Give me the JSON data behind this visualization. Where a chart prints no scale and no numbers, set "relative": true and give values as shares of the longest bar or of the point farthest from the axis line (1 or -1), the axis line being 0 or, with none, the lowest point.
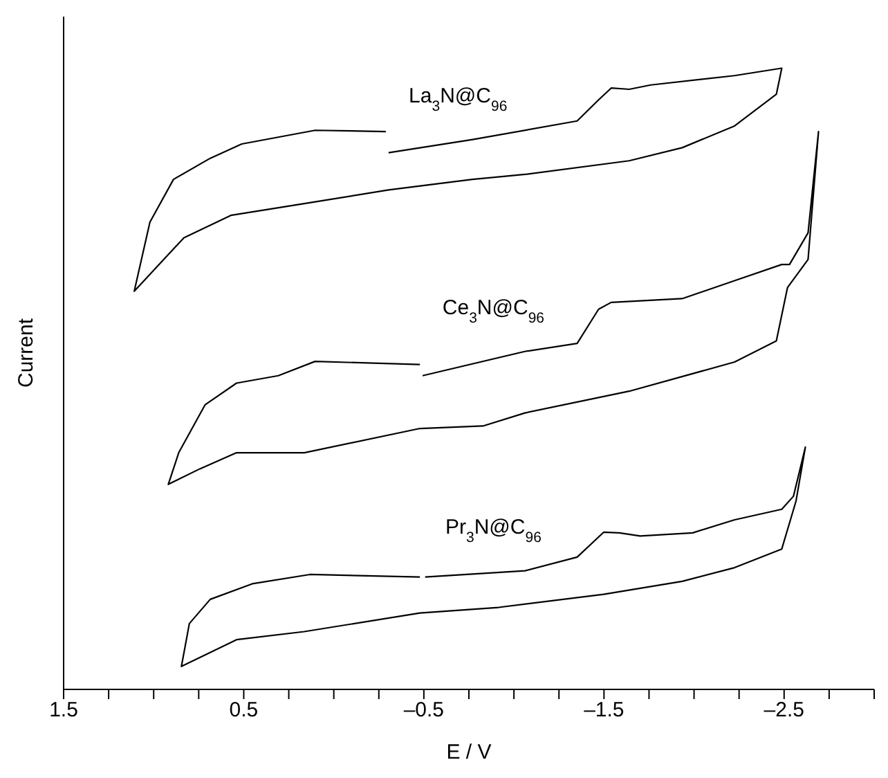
{
  "chart_data": {
    "type": "line",
    "relative": true,
    "xlabel": "E / V",
    "ylabel": "Current",
    "xlim": [
      1.5,
      -3.0
    ],
    "xticks": [
      1.5,
      {
        "value": 1.25,
        "label": null
      },
      {
        "value": 1.0,
        "label": null
      },
      {
        "value": 0.75,
        "label": null
      },
      0.5,
      {
        "value": 0.25,
        "label": null
      },
      {
        "value": 0.0,
        "label": null
      },
      {
        "value": -0.25,
        "label": null
      },
      {
        "value": -0.5,
        "label": "–0.5"
      },
      {
        "value": -0.75,
        "label": null
      },
      {
        "value": -1.0,
        "label": null
      },
      {
        "value": -1.25,
        "label": null
      },
      {
        "value": -1.5,
        "label": "–1.5"
      },
      {
        "value": -1.75,
        "label": null
      },
      {
        "value": -2.0,
        "label": null
      },
      {
        "value": -2.25,
        "label": null
      },
      {
        "value": -2.5,
        "label": "–2.5"
      },
      {
        "value": -2.75,
        "label": null
      },
      {
        "value": -3.0,
        "label": null
      }
    ],
    "grid": false,
    "legend": false,
    "marker": "none",
    "line_style": "solid",
    "series": [
      {
        "name": "La$_{3}$N@C$_{96}$",
        "color": "#000000",
        "x": [
          -0.304,
          -0.77,
          -1.351,
          -1.47,
          -1.54,
          -1.64,
          -1.76,
          -2.225,
          -2.487,
          -2.457,
          -2.225,
          -1.934,
          -1.64,
          -1.061,
          -0.77,
          -0.304,
          0.164,
          0.572,
          0.832,
          1.108,
          1.021,
          0.89,
          0.686,
          0.511,
          0.104,
          -0.289
        ],
        "values": [
          0.864,
          0.885,
          0.915,
          0.949,
          0.968,
          0.966,
          0.973,
          0.988,
          1.0,
          0.958,
          0.907,
          0.872,
          0.851,
          0.829,
          0.821,
          0.804,
          0.782,
          0.763,
          0.727,
          0.641,
          0.752,
          0.821,
          0.855,
          0.878,
          0.9,
          0.898
        ]
      },
      {
        "name": "Ce$_{3}$N@C$_{96}$",
        "color": "#000000",
        "x": [
          -0.493,
          -1.061,
          -1.351,
          -1.47,
          -1.54,
          -1.934,
          -2.225,
          -2.487,
          -2.53,
          -2.633,
          -2.691,
          -2.633,
          -2.519,
          -2.457,
          -2.225,
          -1.64,
          -1.061,
          -0.828,
          -0.478,
          0.164,
          0.54,
          0.744,
          0.919,
          0.861,
          0.715,
          0.54,
          0.308,
          0.104,
          -0.478
        ],
        "values": [
          0.505,
          0.544,
          0.557,
          0.612,
          0.623,
          0.629,
          0.658,
          0.684,
          0.684,
          0.735,
          0.898,
          0.692,
          0.647,
          0.561,
          0.527,
          0.48,
          0.445,
          0.424,
          0.42,
          0.381,
          0.381,
          0.355,
          0.33,
          0.381,
          0.458,
          0.493,
          0.505,
          0.528,
          0.523
        ]
      },
      {
        "name": "Pr$_{3}$N@C$_{96}$",
        "color": "#000000",
        "x": [
          -0.507,
          -1.061,
          -1.351,
          -1.498,
          -1.586,
          -1.701,
          -1.992,
          -2.225,
          -2.487,
          -2.552,
          -2.618,
          -2.566,
          -2.487,
          -2.225,
          -1.934,
          -1.498,
          -0.915,
          -0.478,
          0.164,
          0.54,
          0.846,
          0.802,
          0.686,
          0.453,
          0.133,
          -0.478
        ],
        "values": [
          0.181,
          0.191,
          0.213,
          0.253,
          0.252,
          0.247,
          0.252,
          0.273,
          0.29,
          0.311,
          0.39,
          0.303,
          0.226,
          0.196,
          0.174,
          0.153,
          0.132,
          0.123,
          0.093,
          0.08,
          0.037,
          0.106,
          0.145,
          0.17,
          0.185,
          0.181
        ]
      }
    ]
  }
}
